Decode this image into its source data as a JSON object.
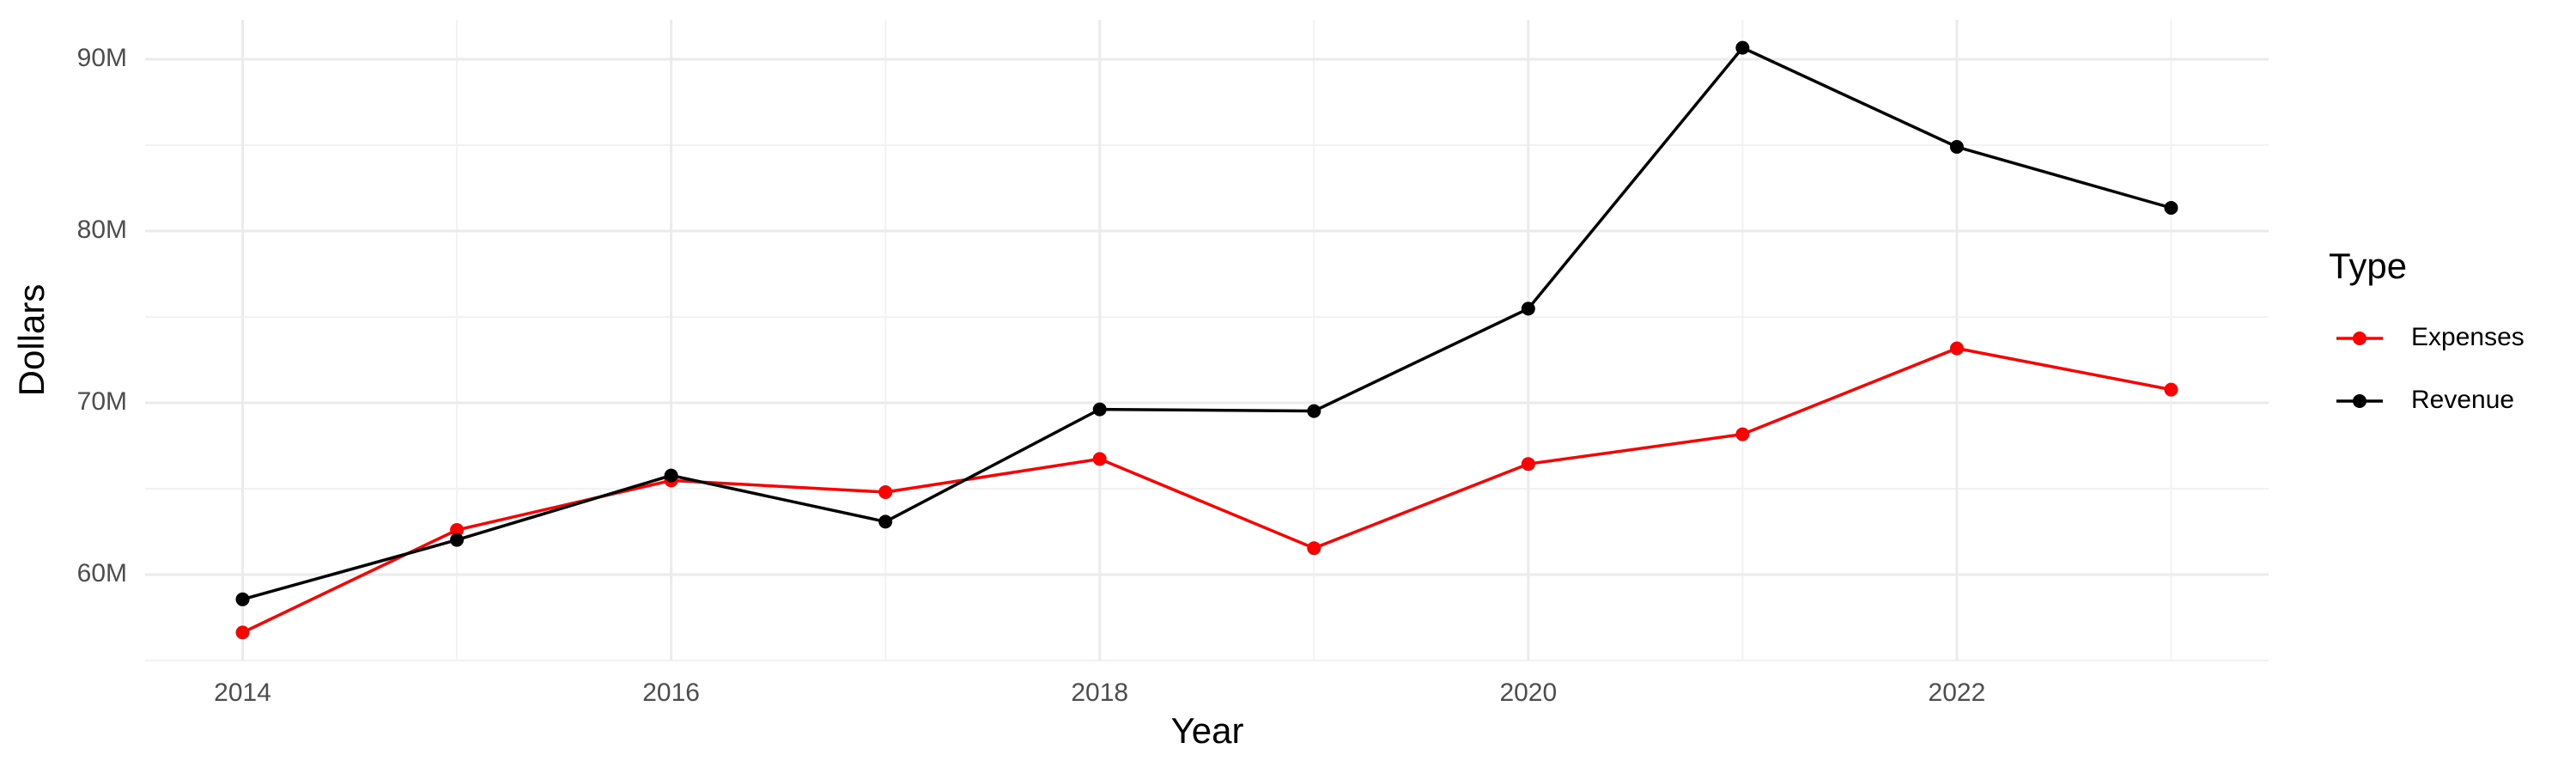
{
  "chart_data": {
    "type": "line",
    "x_label": "Year",
    "y_label": "Dollars",
    "legend_title": "Type",
    "legend": "right",
    "grid": true,
    "x": [
      2014,
      2015,
      2016,
      2017,
      2018,
      2019,
      2020,
      2021,
      2022,
      2023
    ],
    "series": [
      {
        "name": "Expenses",
        "color": "#ff0000",
        "values": [
          56630000,
          62600000,
          65480000,
          64800000,
          66730000,
          61540000,
          66440000,
          68170000,
          73170000,
          70770000
        ]
      },
      {
        "name": "Revenue",
        "color": "#000000",
        "values": [
          58560000,
          62020000,
          65770000,
          63080000,
          69620000,
          69520000,
          75480000,
          90670000,
          84900000,
          81350000
        ]
      }
    ],
    "xlim": [
      2013.545,
      2023.455
    ],
    "xticks": [
      2014,
      2016,
      2018,
      2020,
      2022
    ],
    "ylim": [
      55000000,
      92300000
    ],
    "yticks": [
      {
        "value": 60000000,
        "label": "60M"
      },
      {
        "value": 70000000,
        "label": "70M"
      },
      {
        "value": 80000000,
        "label": "80M"
      },
      {
        "value": 90000000,
        "label": "90M"
      }
    ]
  }
}
